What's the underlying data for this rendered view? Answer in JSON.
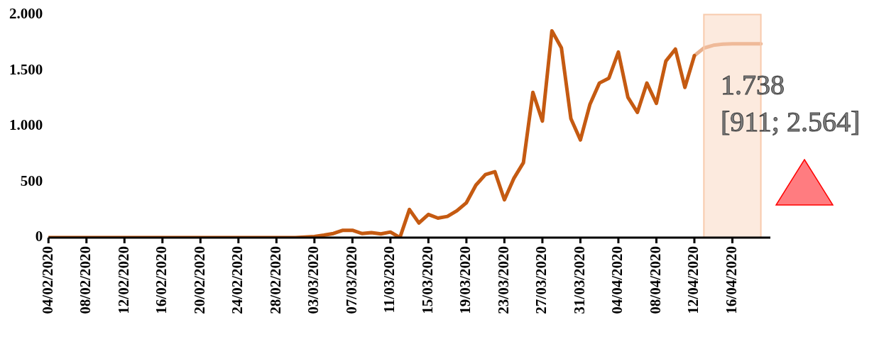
{
  "chart_data": {
    "type": "line",
    "x": [
      "2020-02-04",
      "2020-02-05",
      "2020-02-06",
      "2020-02-07",
      "2020-02-08",
      "2020-02-09",
      "2020-02-10",
      "2020-02-11",
      "2020-02-12",
      "2020-02-13",
      "2020-02-14",
      "2020-02-15",
      "2020-02-16",
      "2020-02-17",
      "2020-02-18",
      "2020-02-19",
      "2020-02-20",
      "2020-02-21",
      "2020-02-22",
      "2020-02-23",
      "2020-02-24",
      "2020-02-25",
      "2020-02-26",
      "2020-02-27",
      "2020-02-28",
      "2020-02-29",
      "2020-03-01",
      "2020-03-02",
      "2020-03-03",
      "2020-03-04",
      "2020-03-05",
      "2020-03-06",
      "2020-03-07",
      "2020-03-08",
      "2020-03-09",
      "2020-03-10",
      "2020-03-11",
      "2020-03-12",
      "2020-03-13",
      "2020-03-14",
      "2020-03-15",
      "2020-03-16",
      "2020-03-17",
      "2020-03-18",
      "2020-03-19",
      "2020-03-20",
      "2020-03-21",
      "2020-03-22",
      "2020-03-23",
      "2020-03-24",
      "2020-03-25",
      "2020-03-26",
      "2020-03-27",
      "2020-03-28",
      "2020-03-29",
      "2020-03-30",
      "2020-03-31",
      "2020-04-01",
      "2020-04-02",
      "2020-04-03",
      "2020-04-04",
      "2020-04-05",
      "2020-04-06",
      "2020-04-07",
      "2020-04-08",
      "2020-04-09",
      "2020-04-10",
      "2020-04-11",
      "2020-04-12",
      "2020-04-13",
      "2020-04-14",
      "2020-04-15",
      "2020-04-16",
      "2020-04-17",
      "2020-04-18",
      "2020-04-19"
    ],
    "series": [
      {
        "color": "#c55a11",
        "values": [
          0,
          0,
          0,
          0,
          0,
          0,
          0,
          0,
          0,
          0,
          0,
          0,
          0,
          0,
          0,
          0,
          0,
          0,
          0,
          0,
          0,
          0,
          0,
          0,
          0,
          0,
          0,
          5,
          10,
          22,
          37,
          66,
          66,
          37,
          44,
          33,
          50,
          0,
          252,
          131,
          208,
          175,
          190,
          241,
          313,
          471,
          565,
          591,
          339,
          532,
          672,
          1303,
          1045,
          1855,
          1702,
          1067,
          876,
          1194,
          1386,
          1430,
          1664,
          1259,
          1123,
          1386,
          1204,
          1583,
          1691,
          1347,
          1632,
          null,
          null,
          null,
          null,
          null,
          null,
          null
        ]
      },
      {
        "color": "#e9b08c",
        "values": [
          null,
          null,
          null,
          null,
          null,
          null,
          null,
          null,
          null,
          null,
          null,
          null,
          null,
          null,
          null,
          null,
          null,
          null,
          null,
          null,
          null,
          null,
          null,
          null,
          null,
          null,
          null,
          null,
          null,
          null,
          null,
          null,
          null,
          null,
          null,
          null,
          null,
          null,
          null,
          null,
          null,
          null,
          null,
          null,
          null,
          null,
          null,
          null,
          null,
          null,
          null,
          null,
          null,
          null,
          null,
          null,
          null,
          null,
          null,
          null,
          null,
          null,
          null,
          null,
          null,
          null,
          null,
          null,
          1632,
          1700,
          1725,
          1735,
          1738,
          1738,
          1738,
          1738
        ]
      }
    ],
    "xlim": [
      "2020-02-04",
      "2020-04-20"
    ],
    "xticks": [
      {
        "value": "2020-02-04",
        "label": "04/02/2020"
      },
      {
        "value": "2020-02-08",
        "label": "08/02/2020"
      },
      {
        "value": "2020-02-12",
        "label": "12/02/2020"
      },
      {
        "value": "2020-02-16",
        "label": "16/02/2020"
      },
      {
        "value": "2020-02-20",
        "label": "20/02/2020"
      },
      {
        "value": "2020-02-24",
        "label": "24/02/2020"
      },
      {
        "value": "2020-02-28",
        "label": "28/02/2020"
      },
      {
        "value": "2020-03-03",
        "label": "03/03/2020"
      },
      {
        "value": "2020-03-07",
        "label": "07/03/2020"
      },
      {
        "value": "2020-03-11",
        "label": "11/03/2020"
      },
      {
        "value": "2020-03-15",
        "label": "15/03/2020"
      },
      {
        "value": "2020-03-19",
        "label": "19/03/2020"
      },
      {
        "value": "2020-03-23",
        "label": "23/03/2020"
      },
      {
        "value": "2020-03-27",
        "label": "27/03/2020"
      },
      {
        "value": "2020-03-31",
        "label": "31/03/2020"
      },
      {
        "value": "2020-04-04",
        "label": "04/04/2020"
      },
      {
        "value": "2020-04-08",
        "label": "08/04/2020"
      },
      {
        "value": "2020-04-12",
        "label": "12/04/2020"
      },
      {
        "value": "2020-04-16",
        "label": "16/04/2020"
      }
    ],
    "ylim": [
      0,
      2000
    ],
    "yticks": [
      0,
      500,
      {
        "value": 1000,
        "label": "1.000"
      },
      {
        "value": 1500,
        "label": "1.500"
      },
      {
        "value": 2000,
        "label": "2.000"
      }
    ],
    "bands": [
      {
        "axis": "x",
        "from": "2020-04-13",
        "to": "2020-04-19",
        "color": "#f8cbad"
      }
    ],
    "annotations": [
      "1.738",
      "[911; 2.564]"
    ],
    "grid": false,
    "legend": false,
    "marker": "none",
    "line_style": "solid"
  }
}
